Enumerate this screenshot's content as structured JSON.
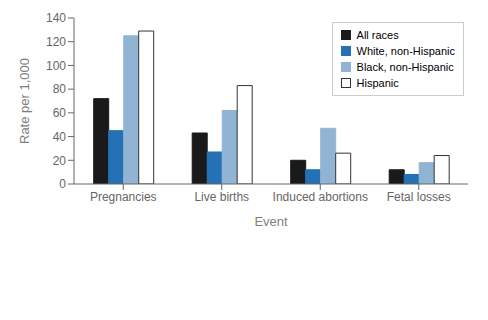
{
  "chart_data": {
    "type": "bar",
    "categories": [
      "Pregnancies",
      "Live births",
      "Induced abortions",
      "Fetal losses"
    ],
    "series": [
      {
        "name": "All races",
        "color": "#1a1a1a",
        "values": [
          72,
          43,
          20,
          12
        ]
      },
      {
        "name": "White, non-Hispanic",
        "color": "#2472b5",
        "values": [
          45,
          27,
          12,
          8
        ]
      },
      {
        "name": "Black, non-Hispanic",
        "color": "#92b4d4",
        "values": [
          125,
          62,
          47,
          18
        ]
      },
      {
        "name": "Hispanic",
        "color": "#ffffff",
        "values": [
          129,
          83,
          26,
          24
        ]
      }
    ],
    "xlabel": "Event",
    "ylabel": "Rate per 1,000",
    "ylim": [
      0,
      140
    ],
    "yticks": [
      0,
      20,
      40,
      60,
      80,
      100,
      120,
      140
    ],
    "grid": false,
    "legend": "upper right"
  }
}
